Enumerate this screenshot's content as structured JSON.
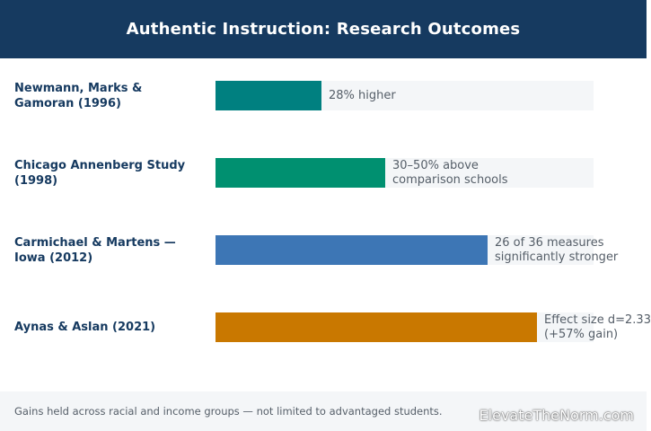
{
  "chart_data": {
    "type": "bar",
    "orientation": "horizontal",
    "title": "Authentic Instruction: Research Outcomes",
    "categories": [
      "Newmann, Marks & Gamoran (1996)",
      "Chicago Annenberg Study (1998)",
      "Carmichael & Martens — Iowa (2012)",
      "Aynas & Aslan (2021)"
    ],
    "values": [
      0.28,
      0.45,
      0.72,
      0.85
    ],
    "value_labels": [
      [
        "28% higher"
      ],
      [
        "30–50% above",
        "comparison schools"
      ],
      [
        "26 of 36 measures",
        "significantly stronger"
      ],
      [
        "Effect size d=2.33",
        "(+57% gain)"
      ]
    ],
    "colors": [
      "#008080",
      "#009070",
      "#3d76b5",
      "#c97800"
    ],
    "xlim": [
      0,
      1
    ],
    "grid": false,
    "footer_note": "Gains held across racial and income groups — not limited to advantaged students.",
    "watermark": "ElevateTheNorm.com"
  }
}
